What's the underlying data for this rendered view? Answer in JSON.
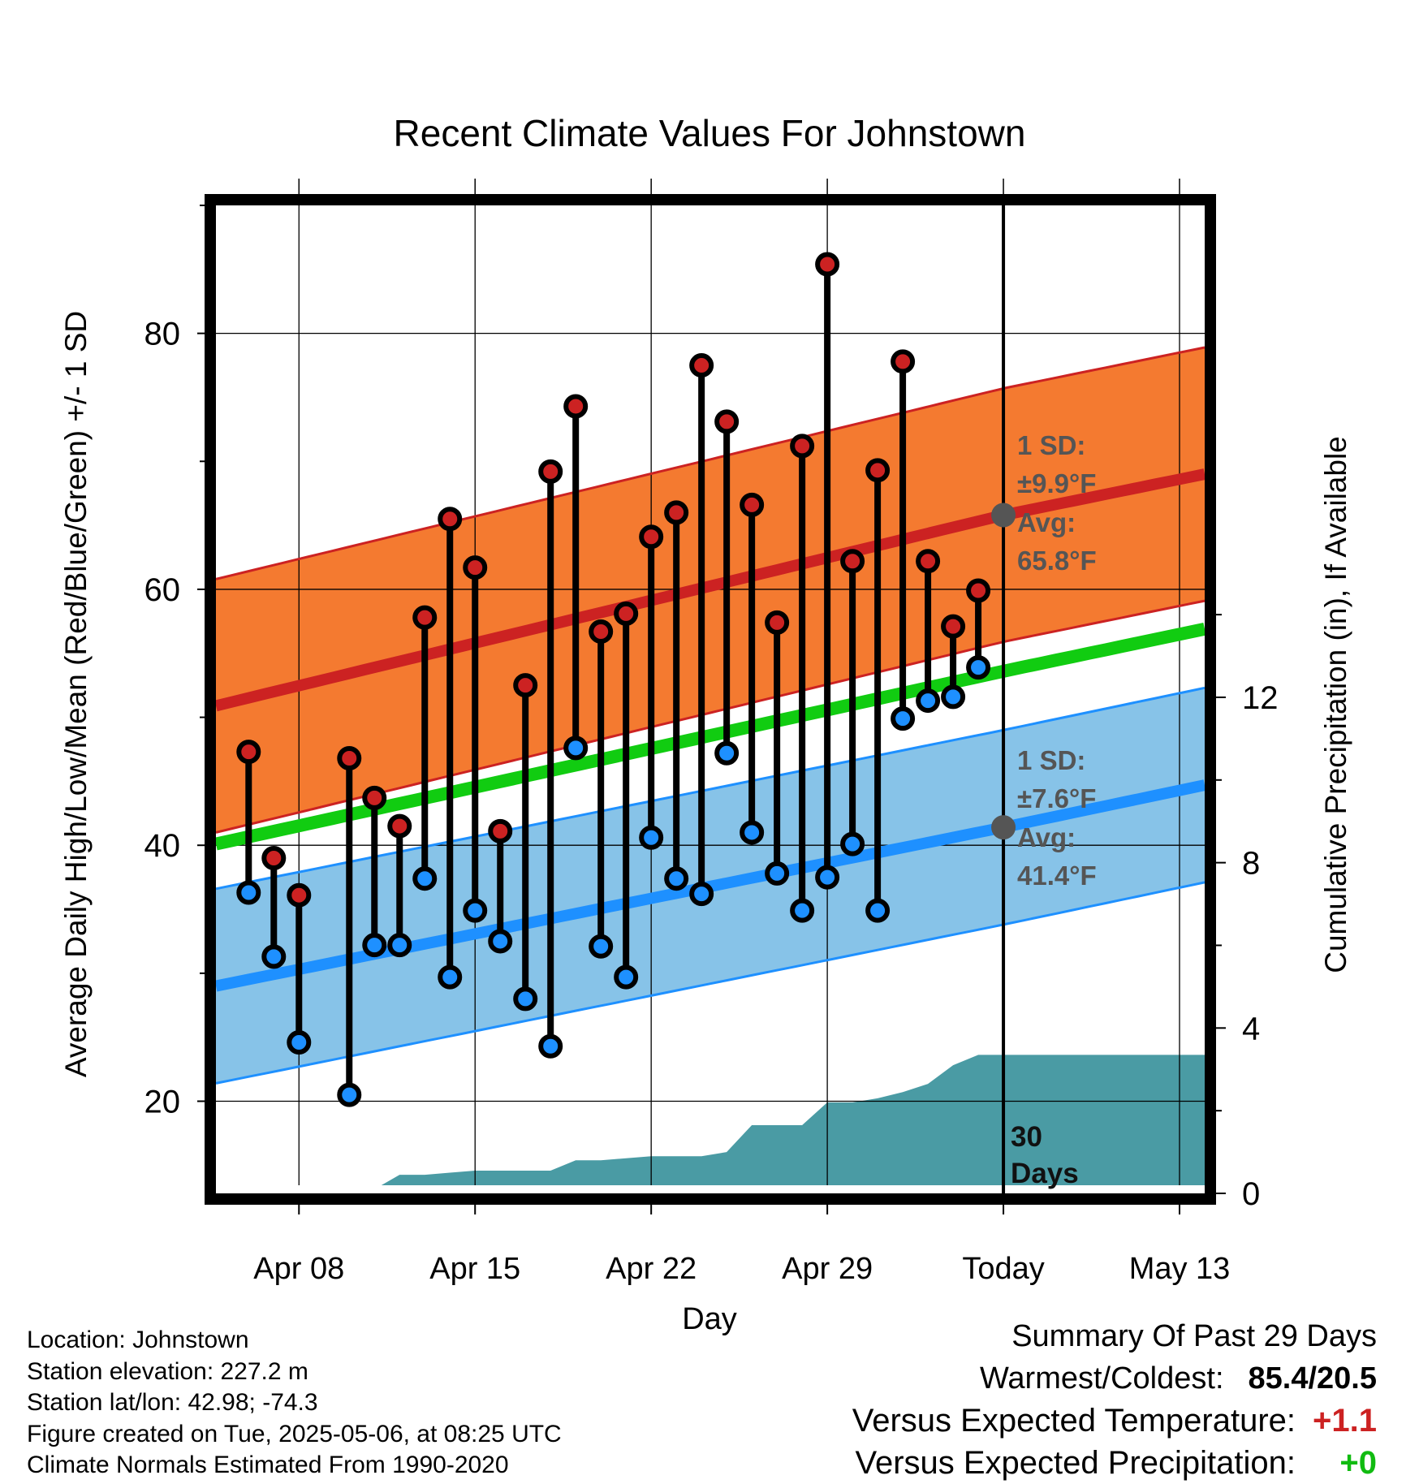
{
  "title": "Recent Climate Values For Johnstown",
  "chart_data": {
    "type": "line",
    "title": "Recent Climate Values For Johnstown",
    "xlabel": "Day",
    "ylabel_left": "Average Daily High/Low/Mean (Red/Blue/Green) +/- 1 SD",
    "ylabel_right": "Cumulative Precipitation (in), If Available",
    "x_tick_labels": [
      "Apr 08",
      "Apr 15",
      "Apr 22",
      "Apr 29",
      "Today",
      "May 13"
    ],
    "x_tick_days": [
      8,
      15,
      22,
      29,
      36,
      43
    ],
    "x_range": [
      4.7,
      44.0
    ],
    "y_left_ticks": [
      20,
      40,
      60,
      80
    ],
    "y_left_range": [
      12.8,
      90.0
    ],
    "y_right_ticks": [
      0,
      4,
      8,
      12
    ],
    "y_right_range": [
      0,
      23.9
    ],
    "today_day": 36,
    "today_label": "30 Days",
    "grid": true,
    "daily_high": [
      {
        "day": 6,
        "value": 47.3
      },
      {
        "day": 7,
        "value": 39.0
      },
      {
        "day": 8,
        "value": 36.1
      },
      {
        "day": 10,
        "value": 46.8
      },
      {
        "day": 11,
        "value": 43.7
      },
      {
        "day": 12,
        "value": 41.5
      },
      {
        "day": 13,
        "value": 57.8
      },
      {
        "day": 14,
        "value": 65.5
      },
      {
        "day": 15,
        "value": 61.7
      },
      {
        "day": 16,
        "value": 41.1
      },
      {
        "day": 17,
        "value": 52.5
      },
      {
        "day": 18,
        "value": 69.2
      },
      {
        "day": 19,
        "value": 74.3
      },
      {
        "day": 20,
        "value": 56.7
      },
      {
        "day": 21,
        "value": 58.1
      },
      {
        "day": 22,
        "value": 64.1
      },
      {
        "day": 23,
        "value": 66.0
      },
      {
        "day": 24,
        "value": 77.5
      },
      {
        "day": 25,
        "value": 73.1
      },
      {
        "day": 26,
        "value": 66.6
      },
      {
        "day": 27,
        "value": 57.4
      },
      {
        "day": 28,
        "value": 71.2
      },
      {
        "day": 29,
        "value": 85.4
      },
      {
        "day": 30,
        "value": 62.2
      },
      {
        "day": 31,
        "value": 69.3
      },
      {
        "day": 32,
        "value": 77.8
      },
      {
        "day": 33,
        "value": 62.2
      },
      {
        "day": 34,
        "value": 57.1
      },
      {
        "day": 35,
        "value": 59.9
      }
    ],
    "daily_low": [
      {
        "day": 6,
        "value": 36.3
      },
      {
        "day": 7,
        "value": 31.3
      },
      {
        "day": 8,
        "value": 24.6
      },
      {
        "day": 10,
        "value": 20.5
      },
      {
        "day": 11,
        "value": 32.2
      },
      {
        "day": 12,
        "value": 32.2
      },
      {
        "day": 13,
        "value": 37.4
      },
      {
        "day": 14,
        "value": 29.7
      },
      {
        "day": 15,
        "value": 34.9
      },
      {
        "day": 16,
        "value": 32.5
      },
      {
        "day": 17,
        "value": 28.0
      },
      {
        "day": 18,
        "value": 24.3
      },
      {
        "day": 19,
        "value": 47.6
      },
      {
        "day": 20,
        "value": 32.1
      },
      {
        "day": 21,
        "value": 29.7
      },
      {
        "day": 22,
        "value": 40.6
      },
      {
        "day": 23,
        "value": 37.4
      },
      {
        "day": 24,
        "value": 36.2
      },
      {
        "day": 25,
        "value": 47.2
      },
      {
        "day": 26,
        "value": 41.0
      },
      {
        "day": 27,
        "value": 37.8
      },
      {
        "day": 28,
        "value": 34.9
      },
      {
        "day": 29,
        "value": 37.5
      },
      {
        "day": 30,
        "value": 40.1
      },
      {
        "day": 31,
        "value": 34.9
      },
      {
        "day": 32,
        "value": 49.9
      },
      {
        "day": 33,
        "value": 51.3
      },
      {
        "day": 34,
        "value": 51.6
      },
      {
        "day": 35,
        "value": 53.9
      }
    ],
    "normal_high": {
      "day": [
        4.7,
        36,
        44
      ],
      "value": [
        50.9,
        65.8,
        69.0
      ]
    },
    "normal_high_sd": 9.9,
    "normal_low": {
      "day": [
        4.7,
        36,
        44
      ],
      "value": [
        29.0,
        41.4,
        44.7
      ]
    },
    "normal_low_sd": 7.6,
    "normal_mean": {
      "day": [
        4.7,
        36,
        44
      ],
      "value": [
        40.1,
        53.6,
        56.9
      ]
    },
    "cumulative_precip": {
      "day": [
        4.7,
        8,
        9,
        11,
        12,
        13,
        14,
        15,
        16,
        17,
        18,
        19,
        20,
        21,
        22,
        23,
        24,
        25,
        26,
        27,
        28,
        29,
        30,
        31,
        32,
        33,
        34,
        35,
        36,
        44
      ],
      "value": [
        0,
        0,
        0,
        0.1,
        0.45,
        0.45,
        0.5,
        0.55,
        0.55,
        0.55,
        0.55,
        0.8,
        0.8,
        0.85,
        0.9,
        0.9,
        0.9,
        1.0,
        1.65,
        1.65,
        1.65,
        2.2,
        2.2,
        2.3,
        2.45,
        2.65,
        3.1,
        3.35,
        3.35,
        3.35
      ]
    },
    "annotations": {
      "high_sd": "1 SD:",
      "high_sd_value": "±9.9°F",
      "high_avg": "Avg:",
      "high_avg_value": "65.8°F",
      "low_sd": "1 SD:",
      "low_sd_value": "±7.6°F",
      "low_avg": "Avg:",
      "low_avg_value": "41.4°F"
    },
    "colors": {
      "high": "#cc2222",
      "high_band": "#f47a30",
      "low": "#1e90ff",
      "low_band": "#87c3e8",
      "mean": "#11cc11",
      "precip": "#4a9ba4",
      "annotation": "#555555"
    }
  },
  "info": {
    "location": "Location: Johnstown",
    "elevation": "Station elevation: 227.2 m",
    "latlon": "Station lat/lon: 42.98; -74.3",
    "created": "Figure created on Tue, 2025-05-06, at 08:25 UTC",
    "normals": "Climate Normals Estimated From 1990-2020"
  },
  "summary": {
    "title": "Summary Of Past 29 Days",
    "warmest_coldest_label": "Warmest/Coldest:",
    "warmest_coldest_value": "85.4/20.5",
    "temp_label": "Versus Expected Temperature:",
    "temp_value": "+1.1",
    "temp_color": "#cc2222",
    "precip_label": "Versus Expected Precipitation:",
    "precip_value": "+0",
    "precip_color": "#11bb11"
  }
}
